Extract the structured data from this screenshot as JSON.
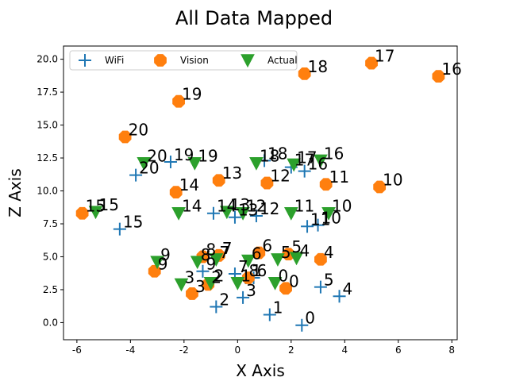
{
  "chart_data": {
    "type": "scatter",
    "title": "All Data Mapped",
    "xlabel": "X Axis",
    "ylabel": "Z Axis",
    "xlim": [
      -6.5,
      8.2
    ],
    "ylim": [
      -1.3,
      21.0
    ],
    "xticks": [
      "-6",
      "-4",
      "-2",
      "0",
      "2",
      "4",
      "6",
      "8"
    ],
    "yticks": [
      "0.0",
      "2.5",
      "5.0",
      "7.5",
      "10.0",
      "12.5",
      "15.0",
      "17.5",
      "20.0"
    ],
    "legend_position": "top-left",
    "legend_columns": 3,
    "grid": false,
    "series": [
      {
        "name": "WiFi",
        "marker": "plus",
        "color": "#1f77b4",
        "points": [
          {
            "label": "0",
            "x": 2.4,
            "y": -0.2
          },
          {
            "label": "1",
            "x": 1.2,
            "y": 0.6
          },
          {
            "label": "2",
            "x": -0.8,
            "y": 1.2
          },
          {
            "label": "3",
            "x": 0.2,
            "y": 1.9
          },
          {
            "label": "4",
            "x": 3.8,
            "y": 2.0
          },
          {
            "label": "5",
            "x": 3.1,
            "y": 2.7
          },
          {
            "label": "6",
            "x": 0.6,
            "y": 3.4
          },
          {
            "label": "7",
            "x": -0.1,
            "y": 3.7
          },
          {
            "label": "8",
            "x": 0.3,
            "y": 3.4
          },
          {
            "label": "9",
            "x": -1.3,
            "y": 3.9
          },
          {
            "label": "10",
            "x": 3.0,
            "y": 7.4
          },
          {
            "label": "11",
            "x": 2.6,
            "y": 7.3
          },
          {
            "label": "12",
            "x": 0.7,
            "y": 8.1
          },
          {
            "label": "13",
            "x": -0.1,
            "y": 8.0
          },
          {
            "label": "14",
            "x": -0.9,
            "y": 8.3
          },
          {
            "label": "15",
            "x": -4.4,
            "y": 7.1
          },
          {
            "label": "16",
            "x": 2.5,
            "y": 11.5
          },
          {
            "label": "17",
            "x": 2.0,
            "y": 11.8
          },
          {
            "label": "18",
            "x": 1.0,
            "y": 12.3
          },
          {
            "label": "19",
            "x": -2.5,
            "y": 12.2
          },
          {
            "label": "20",
            "x": -3.8,
            "y": 11.2
          }
        ]
      },
      {
        "name": "Vision",
        "marker": "octagon",
        "color": "#ff7f0e",
        "points": [
          {
            "label": "0",
            "x": 1.8,
            "y": 2.6
          },
          {
            "label": "1",
            "x": 0.4,
            "y": 3.4
          },
          {
            "label": "2",
            "x": -1.1,
            "y": 2.9
          },
          {
            "label": "3",
            "x": -1.7,
            "y": 2.2
          },
          {
            "label": "4",
            "x": 3.1,
            "y": 4.8
          },
          {
            "label": "5",
            "x": 1.9,
            "y": 5.2
          },
          {
            "label": "6",
            "x": 0.8,
            "y": 5.3
          },
          {
            "label": "7",
            "x": -0.7,
            "y": 5.1
          },
          {
            "label": "8",
            "x": -1.3,
            "y": 5.0
          },
          {
            "label": "9",
            "x": -3.1,
            "y": 3.9
          },
          {
            "label": "10",
            "x": 5.3,
            "y": 10.3
          },
          {
            "label": "11",
            "x": 3.3,
            "y": 10.5
          },
          {
            "label": "12",
            "x": 1.1,
            "y": 10.6
          },
          {
            "label": "13",
            "x": -0.7,
            "y": 10.8
          },
          {
            "label": "14",
            "x": -2.3,
            "y": 9.9
          },
          {
            "label": "15",
            "x": -5.8,
            "y": 8.3
          },
          {
            "label": "16",
            "x": 7.5,
            "y": 18.7
          },
          {
            "label": "17",
            "x": 5.0,
            "y": 19.7
          },
          {
            "label": "18",
            "x": 2.5,
            "y": 18.9
          },
          {
            "label": "19",
            "x": -2.2,
            "y": 16.8
          },
          {
            "label": "20",
            "x": -4.2,
            "y": 14.1
          }
        ]
      },
      {
        "name": "Actual",
        "marker": "triangle-down",
        "color": "#2ca02c",
        "points": [
          {
            "label": "0",
            "x": 1.4,
            "y": 3.0
          },
          {
            "label": "1",
            "x": 0.0,
            "y": 3.0
          },
          {
            "label": "2",
            "x": -1.0,
            "y": 3.0
          },
          {
            "label": "3",
            "x": -2.1,
            "y": 2.9
          },
          {
            "label": "4",
            "x": 2.2,
            "y": 4.9
          },
          {
            "label": "5",
            "x": 1.5,
            "y": 4.8
          },
          {
            "label": "6",
            "x": 0.4,
            "y": 4.7
          },
          {
            "label": "7",
            "x": -0.8,
            "y": 4.8
          },
          {
            "label": "8",
            "x": -1.5,
            "y": 4.6
          },
          {
            "label": "9",
            "x": -3.0,
            "y": 4.6
          },
          {
            "label": "10",
            "x": 3.4,
            "y": 8.3
          },
          {
            "label": "11",
            "x": 2.0,
            "y": 8.3
          },
          {
            "label": "12",
            "x": 0.2,
            "y": 8.3
          },
          {
            "label": "13",
            "x": -0.4,
            "y": 8.4
          },
          {
            "label": "14",
            "x": -2.2,
            "y": 8.3
          },
          {
            "label": "15",
            "x": -5.3,
            "y": 8.4
          },
          {
            "label": "16",
            "x": 3.1,
            "y": 12.3
          },
          {
            "label": "17",
            "x": 2.1,
            "y": 12.0
          },
          {
            "label": "18",
            "x": 0.7,
            "y": 12.1
          },
          {
            "label": "19",
            "x": -1.6,
            "y": 12.1
          },
          {
            "label": "20",
            "x": -3.5,
            "y": 12.1
          }
        ]
      }
    ]
  }
}
